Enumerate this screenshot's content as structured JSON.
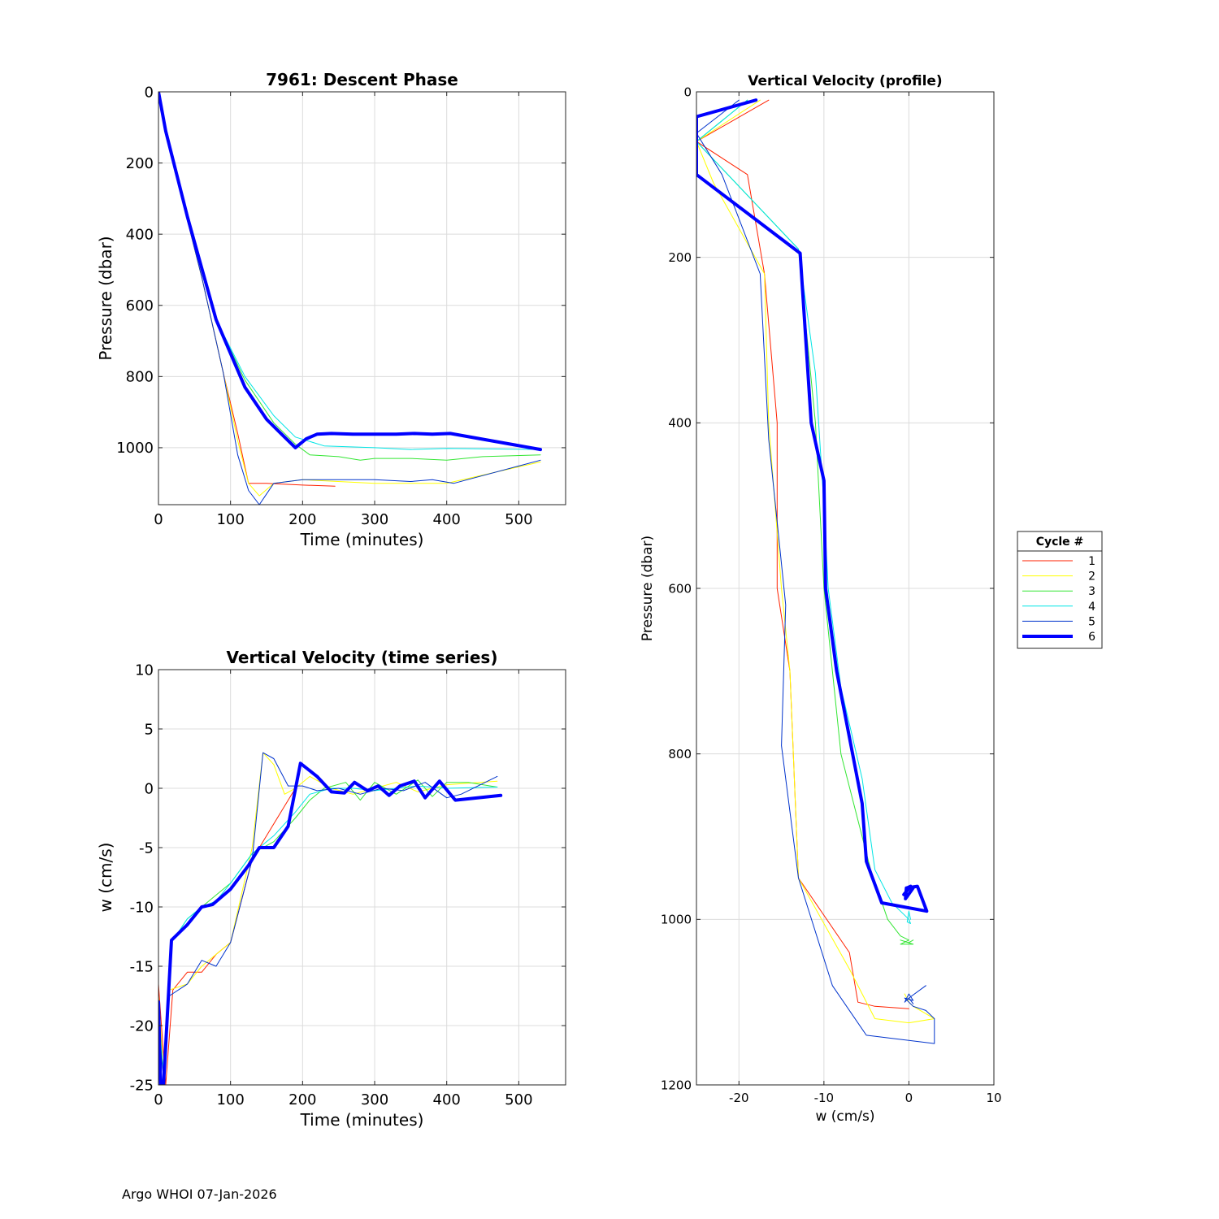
{
  "footer": {
    "text": "Argo WHOI 07-Jan-2026"
  },
  "colors": {
    "c1": "#ff2200",
    "c2": "#ffff00",
    "c3": "#33e633",
    "c4": "#00e5e5",
    "c5": "#0033cc",
    "c6": "#0000ff"
  },
  "legend": {
    "title": "Cycle #",
    "entries": [
      "1",
      "2",
      "3",
      "4",
      "5",
      "6"
    ]
  },
  "chart_data": [
    {
      "type": "line",
      "title": "7961: Descent Phase",
      "xlabel": "Time (minutes)",
      "ylabel": "Pressure (dbar)",
      "xlim": [
        0,
        565
      ],
      "ylim": [
        0,
        1160
      ],
      "y_reversed": true,
      "grid": true,
      "xticks": [
        0,
        100,
        200,
        300,
        400,
        500
      ],
      "yticks": [
        0,
        200,
        400,
        600,
        800,
        1000
      ],
      "series": [
        {
          "name": "1",
          "color": "#ff2200",
          "width": 1,
          "x": [
            0,
            10,
            30,
            60,
            90,
            110,
            125,
            150,
            200,
            245
          ],
          "y": [
            0,
            110,
            280,
            520,
            790,
            960,
            1100,
            1100,
            1105,
            1108
          ]
        },
        {
          "name": "2",
          "color": "#ffff00",
          "width": 1,
          "x": [
            0,
            10,
            30,
            60,
            90,
            110,
            125,
            140,
            160,
            200,
            300,
            400,
            530
          ],
          "y": [
            0,
            110,
            280,
            520,
            790,
            980,
            1100,
            1135,
            1100,
            1090,
            1100,
            1100,
            1040
          ]
        },
        {
          "name": "3",
          "color": "#33e633",
          "width": 1,
          "x": [
            0,
            10,
            40,
            80,
            120,
            160,
            190,
            210,
            250,
            280,
            300,
            350,
            400,
            450,
            530
          ],
          "y": [
            0,
            110,
            350,
            640,
            810,
            930,
            990,
            1020,
            1025,
            1035,
            1030,
            1030,
            1035,
            1025,
            1020
          ]
        },
        {
          "name": "4",
          "color": "#00e5e5",
          "width": 1,
          "x": [
            0,
            10,
            40,
            80,
            120,
            160,
            190,
            230,
            300,
            350,
            400,
            530
          ],
          "y": [
            0,
            110,
            350,
            640,
            800,
            910,
            970,
            995,
            1000,
            1005,
            1002,
            1005
          ]
        },
        {
          "name": "5",
          "color": "#0033cc",
          "width": 1,
          "x": [
            0,
            10,
            30,
            60,
            90,
            110,
            125,
            140,
            160,
            200,
            300,
            350,
            380,
            410,
            530
          ],
          "y": [
            0,
            110,
            280,
            520,
            790,
            1020,
            1120,
            1160,
            1100,
            1090,
            1090,
            1095,
            1090,
            1100,
            1035
          ]
        },
        {
          "name": "6",
          "color": "#0000ff",
          "width": 4,
          "x": [
            0,
            10,
            40,
            80,
            120,
            150,
            170,
            190,
            205,
            220,
            240,
            270,
            300,
            330,
            355,
            380,
            405,
            530
          ],
          "y": [
            0,
            110,
            350,
            640,
            830,
            920,
            960,
            1000,
            975,
            962,
            960,
            962,
            962,
            962,
            960,
            962,
            960,
            1005
          ]
        }
      ]
    },
    {
      "type": "line",
      "title": "Vertical Velocity (time series)",
      "xlabel": "Time (minutes)",
      "ylabel": "w (cm/s)",
      "xlim": [
        0,
        565
      ],
      "ylim": [
        -25,
        10
      ],
      "grid": true,
      "xticks": [
        0,
        100,
        200,
        300,
        400,
        500
      ],
      "yticks": [
        10,
        5,
        0,
        -5,
        -10,
        -15,
        -20,
        -25
      ],
      "series": [
        {
          "name": "1",
          "color": "#ff2200",
          "width": 1,
          "x": [
            0,
            10,
            20,
            40,
            60,
            80,
            100,
            130,
            150,
            170,
            190
          ],
          "y": [
            -16.5,
            -25,
            -17,
            -15.5,
            -15.5,
            -14,
            -13,
            -6,
            -4,
            -2,
            0
          ]
        },
        {
          "name": "2",
          "color": "#ffff00",
          "width": 1,
          "x": [
            0,
            8,
            15,
            40,
            60,
            80,
            100,
            130,
            145,
            160,
            175,
            190,
            210,
            240,
            270,
            300,
            330,
            360,
            400,
            470
          ],
          "y": [
            -17.5,
            -25,
            -17,
            -16.5,
            -15,
            -14,
            -13,
            -5,
            3,
            2,
            -0.5,
            0,
            1,
            0,
            -0.5,
            0,
            0.5,
            -0.3,
            0.3,
            0.6
          ]
        },
        {
          "name": "3",
          "color": "#33e633",
          "width": 1,
          "x": [
            0,
            8,
            18,
            40,
            60,
            80,
            100,
            130,
            160,
            190,
            210,
            230,
            260,
            280,
            300,
            330,
            360,
            380,
            400,
            430,
            470
          ],
          "y": [
            -19,
            -25,
            -13,
            -11,
            -10,
            -9,
            -8,
            -5.5,
            -4.5,
            -2.5,
            -1,
            0,
            0.5,
            -1,
            0.5,
            -0.5,
            0.7,
            -0.7,
            0.5,
            0.5,
            0.1
          ]
        },
        {
          "name": "4",
          "color": "#00e5e5",
          "width": 1,
          "x": [
            0,
            8,
            18,
            40,
            60,
            80,
            100,
            130,
            160,
            190,
            210,
            240,
            270,
            300,
            330,
            360,
            400,
            470
          ],
          "y": [
            -19,
            -25,
            -13,
            -11,
            -10,
            -9.5,
            -8,
            -5.5,
            -4,
            -2,
            -0.5,
            0,
            0,
            -0.2,
            0,
            0.2,
            0,
            0.1
          ]
        },
        {
          "name": "5",
          "color": "#0033cc",
          "width": 1,
          "x": [
            0,
            8,
            15,
            40,
            60,
            80,
            100,
            130,
            145,
            160,
            180,
            200,
            220,
            250,
            280,
            310,
            340,
            370,
            400,
            420,
            470
          ],
          "y": [
            -20,
            -25,
            -17.5,
            -16.5,
            -14.5,
            -15,
            -13,
            -6,
            3,
            2.5,
            0.2,
            0.2,
            -0.2,
            0,
            -0.5,
            0,
            -0.2,
            0.5,
            -0.8,
            -0.5,
            1
          ]
        },
        {
          "name": "6",
          "color": "#0000ff",
          "width": 4,
          "x": [
            0,
            3,
            7,
            18,
            40,
            60,
            75,
            100,
            125,
            140,
            160,
            180,
            197,
            220,
            240,
            258,
            272,
            290,
            305,
            320,
            335,
            355,
            370,
            390,
            412,
            475
          ],
          "y": [
            -18,
            -25,
            -25,
            -12.8,
            -11.5,
            -10,
            -9.8,
            -8.5,
            -6.5,
            -5,
            -5,
            -3.2,
            2.1,
            1,
            -0.3,
            -0.4,
            0.5,
            -0.2,
            0.2,
            -0.6,
            0.2,
            0.6,
            -0.8,
            0.6,
            -1,
            -0.6
          ]
        }
      ]
    },
    {
      "type": "line",
      "title": "Vertical Velocity (profile)",
      "xlabel": "w (cm/s)",
      "ylabel": "Pressure (dbar)",
      "xlim": [
        -25,
        10
      ],
      "ylim": [
        0,
        1200
      ],
      "y_reversed": true,
      "grid": true,
      "xticks": [
        -20,
        -10,
        0,
        10
      ],
      "yticks": [
        0,
        200,
        400,
        600,
        800,
        1000,
        1200
      ],
      "series": [
        {
          "name": "1",
          "color": "#ff2200",
          "width": 1,
          "x": [
            -16.5,
            -25,
            -19,
            -17,
            -15.5,
            -15.5,
            -14,
            -13,
            -7,
            -6,
            -4,
            0
          ],
          "y": [
            10,
            60,
            100,
            220,
            400,
            600,
            700,
            950,
            1040,
            1100,
            1105,
            1108
          ]
        },
        {
          "name": "2",
          "color": "#ffff00",
          "width": 1,
          "x": [
            -17.5,
            -25,
            -23,
            -17,
            -16.5,
            -15,
            -14,
            -13,
            -7,
            -4,
            0,
            3,
            0.5,
            0,
            -0.5
          ],
          "y": [
            10,
            60,
            110,
            220,
            400,
            600,
            700,
            950,
            1060,
            1120,
            1125,
            1120,
            1105,
            1100,
            1090
          ]
        },
        {
          "name": "3",
          "color": "#33e633",
          "width": 1,
          "x": [
            -19,
            -25,
            -13,
            -11,
            -10,
            -9,
            -8,
            -5.5,
            -4.5,
            -2.5,
            -1,
            0,
            -1,
            0.5,
            -1,
            0,
            0.5
          ],
          "y": [
            10,
            60,
            190,
            400,
            600,
            700,
            800,
            900,
            940,
            1000,
            1020,
            1025,
            1030,
            1030,
            1025,
            1028,
            1025
          ]
        },
        {
          "name": "4",
          "color": "#00e5e5",
          "width": 1,
          "x": [
            -19,
            -25,
            -13,
            -11,
            -10,
            -9.5,
            -8,
            -5.5,
            -4,
            -2,
            -0.5,
            0,
            0.2,
            -0.2,
            0,
            0.2
          ],
          "y": [
            10,
            60,
            190,
            340,
            500,
            600,
            720,
            830,
            940,
            980,
            995,
            1000,
            1005,
            1003,
            990,
            1000
          ]
        },
        {
          "name": "5",
          "color": "#0033cc",
          "width": 1,
          "x": [
            -20,
            -25,
            -22,
            -17.5,
            -16.5,
            -14.5,
            -15,
            -13,
            -9,
            -5,
            3,
            3,
            2,
            0.5,
            0,
            -0.5,
            0.5,
            0,
            -0.5,
            0,
            0.5,
            0,
            2
          ],
          "y": [
            10,
            50,
            100,
            220,
            420,
            620,
            790,
            950,
            1080,
            1140,
            1150,
            1120,
            1110,
            1105,
            1100,
            1095,
            1098,
            1090,
            1100,
            1095,
            1102,
            1095,
            1080
          ]
        },
        {
          "name": "6",
          "color": "#0000ff",
          "width": 4,
          "x": [
            -18,
            -25,
            -25,
            -12.8,
            -11.5,
            -10,
            -9.8,
            -8.5,
            -5.5,
            -5,
            -3.2,
            2.1,
            1,
            -0.3,
            -0.4,
            0.5,
            -0.2,
            0.2,
            -0.6
          ],
          "y": [
            10,
            30,
            100,
            195,
            400,
            470,
            600,
            700,
            860,
            930,
            980,
            990,
            960,
            962,
            975,
            962,
            962,
            960,
            970
          ]
        }
      ]
    }
  ]
}
